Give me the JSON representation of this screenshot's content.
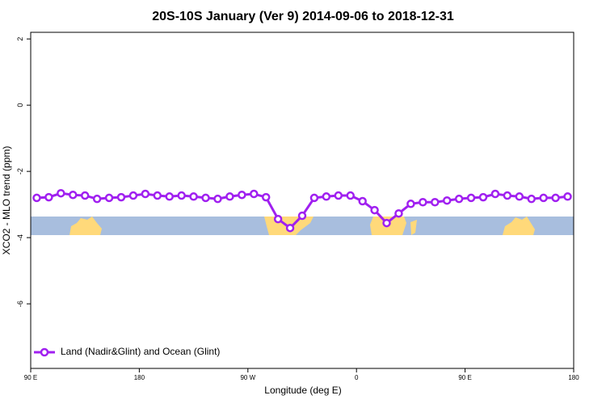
{
  "chart_data": {
    "type": "line",
    "title": "20S-10S January (Ver 9)   2014-09-06 to 2018-12-31",
    "x_label": "Longitude (deg E)",
    "y_label": "XCO2 - MLO trend (ppm)",
    "x": [
      95,
      105,
      115,
      125,
      135,
      145,
      155,
      165,
      175,
      185,
      195,
      205,
      215,
      225,
      235,
      245,
      255,
      265,
      275,
      285,
      295,
      305,
      315,
      325,
      335,
      345,
      355,
      365,
      375,
      385,
      395,
      405,
      415,
      425,
      435,
      445,
      455,
      465,
      475,
      485,
      495,
      505,
      515,
      525,
      535
    ],
    "series": [
      {
        "name": "Land (Nadir&Glint) and Ocean (Glint)",
        "color": "#a020f0",
        "values": [
          -2.8,
          -2.78,
          -2.66,
          -2.71,
          -2.73,
          -2.83,
          -2.8,
          -2.78,
          -2.73,
          -2.68,
          -2.73,
          -2.76,
          -2.73,
          -2.76,
          -2.8,
          -2.83,
          -2.76,
          -2.71,
          -2.68,
          -2.78,
          -3.44,
          -3.71,
          -3.34,
          -2.8,
          -2.76,
          -2.73,
          -2.73,
          -2.9,
          -3.17,
          -3.56,
          -3.27,
          -2.98,
          -2.93,
          -2.93,
          -2.88,
          -2.83,
          -2.8,
          -2.78,
          -2.68,
          -2.73,
          -2.76,
          -2.83,
          -2.8,
          -2.8,
          -2.76
        ]
      }
    ],
    "xlim": [
      90,
      540
    ],
    "xticks": [
      {
        "value": 90,
        "label": "90 E"
      },
      180,
      {
        "value": 270,
        "label": "90 W"
      },
      {
        "value": 360,
        "label": "0"
      },
      {
        "value": 450,
        "label": "90 E"
      },
      {
        "value": 540,
        "label": "180"
      }
    ],
    "ylim": [
      -7.95,
      2.2
    ],
    "yticks": [
      2,
      0,
      -2,
      -4,
      -6
    ],
    "legend": "bottom-left"
  }
}
